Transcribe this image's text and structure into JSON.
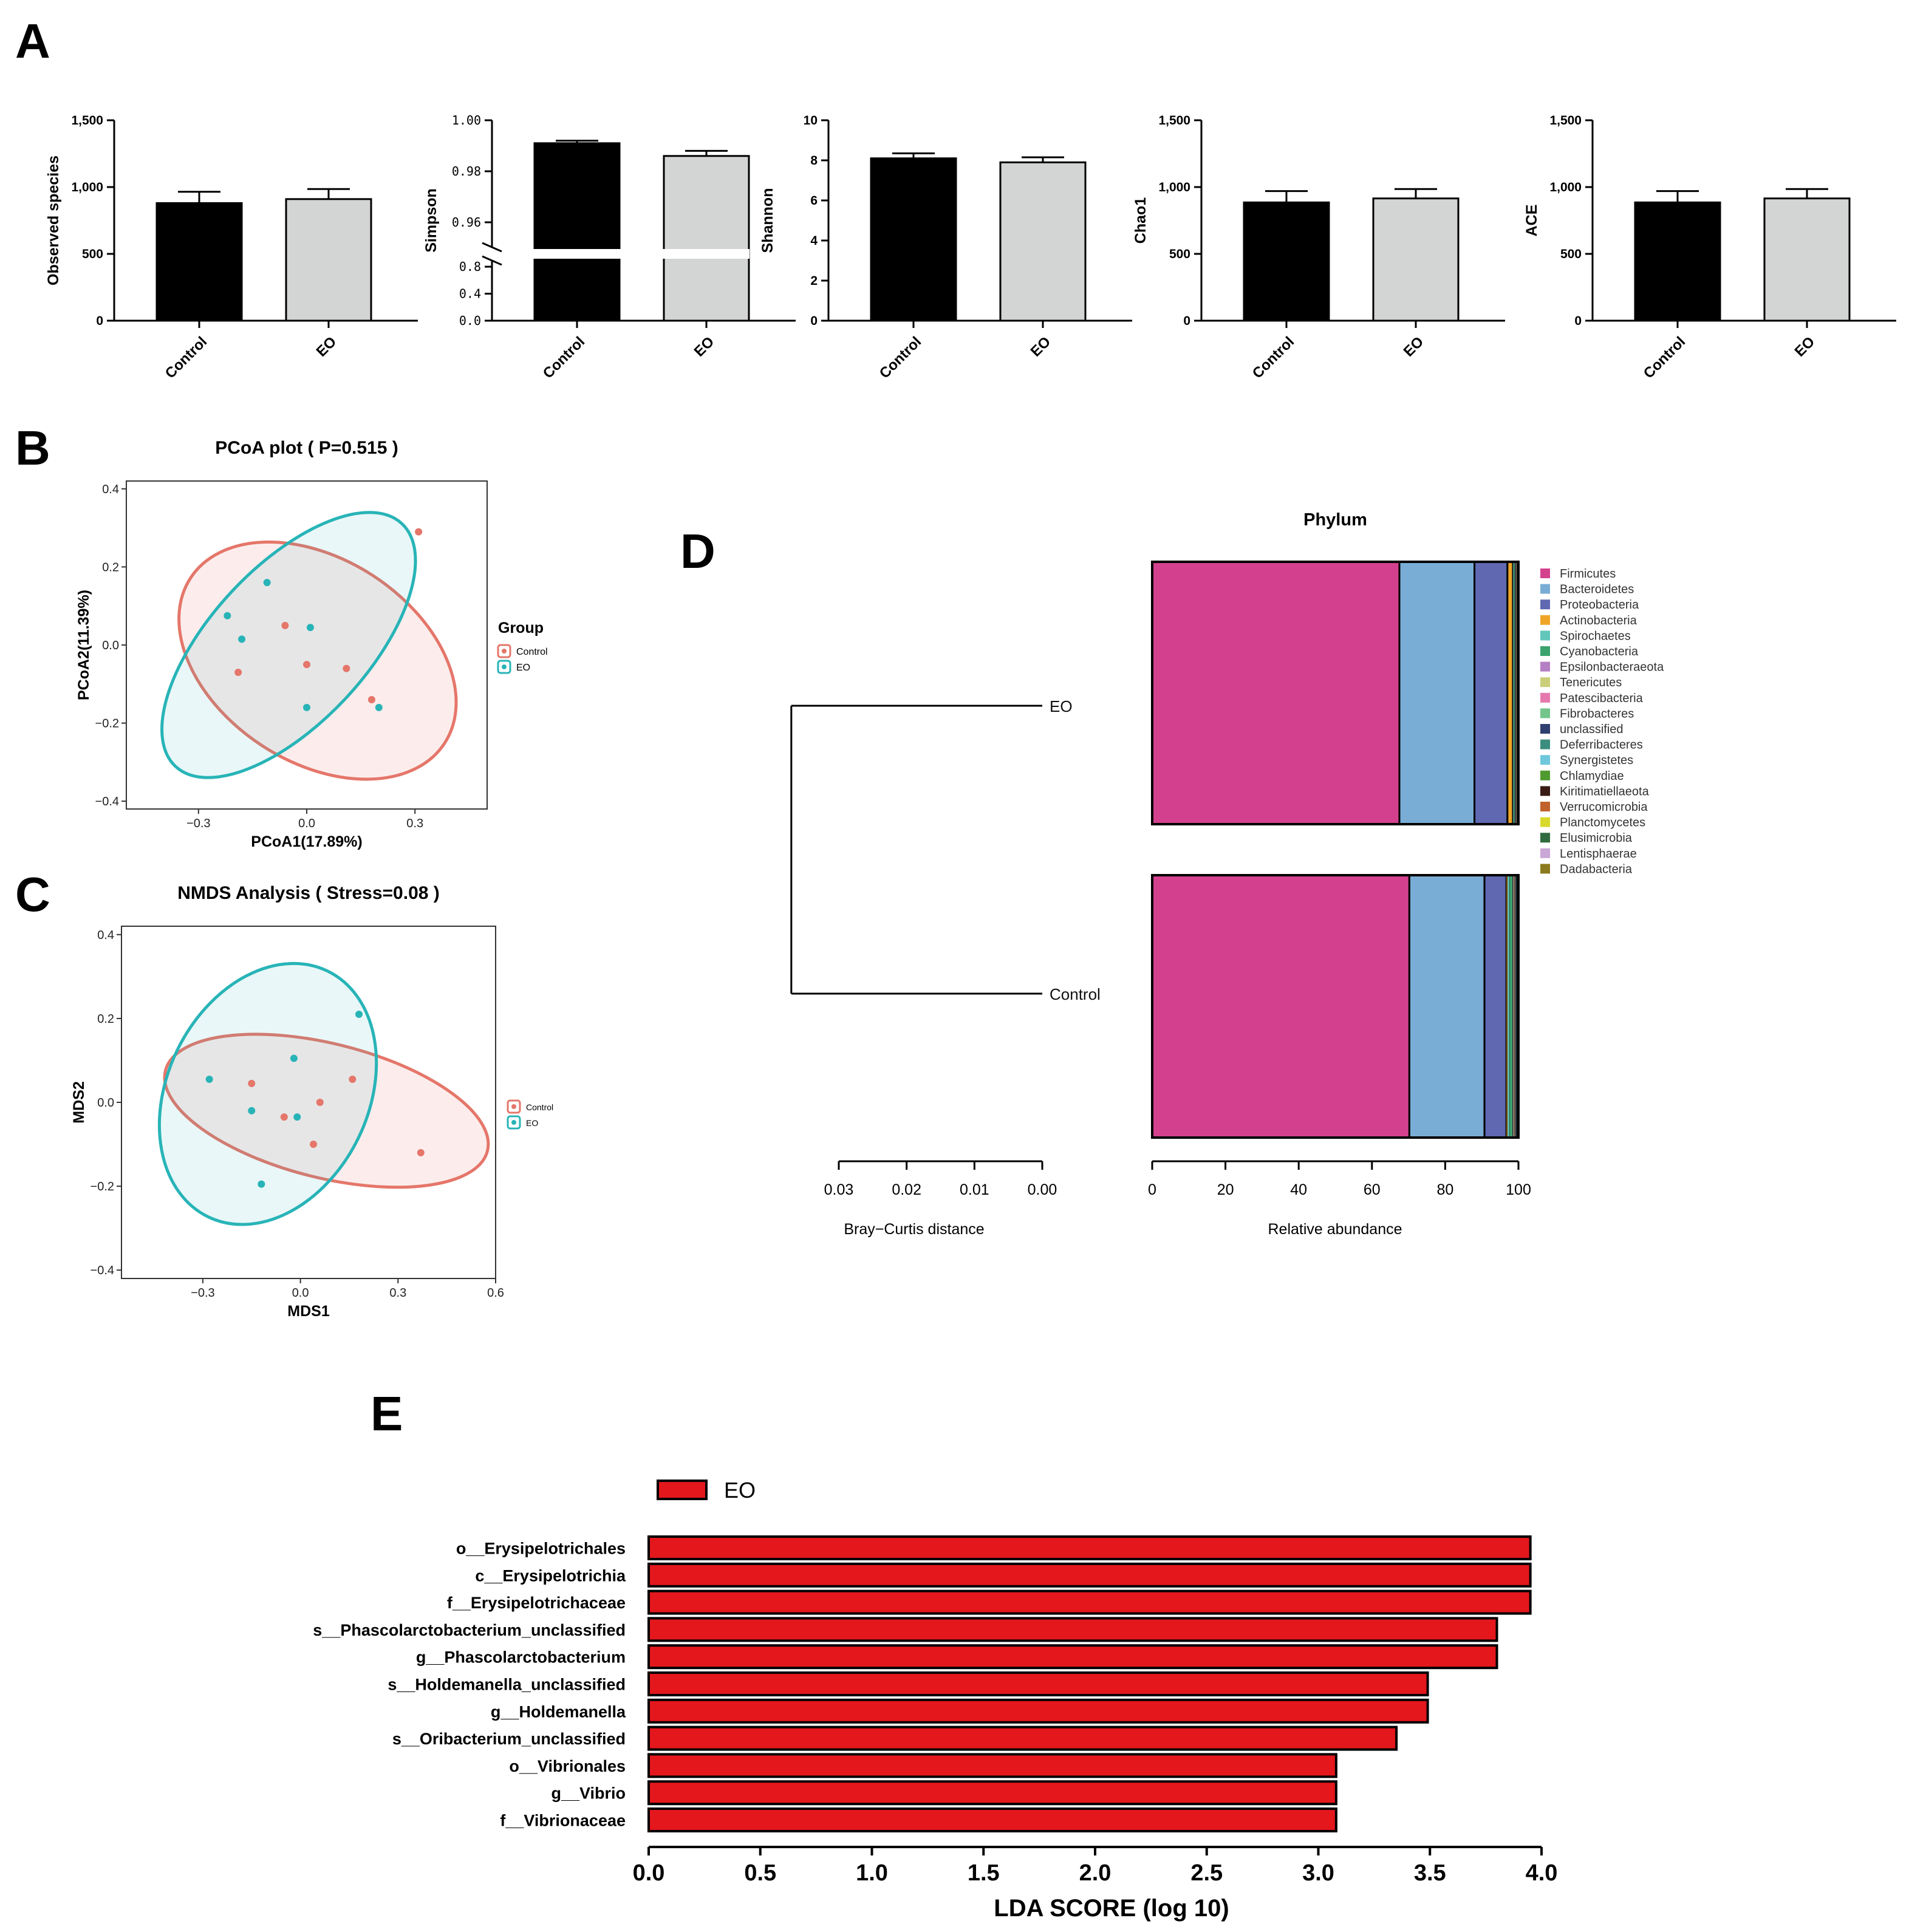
{
  "panel_labels": {
    "a": "A",
    "b": "B",
    "c": "C",
    "d": "D",
    "e": "E"
  },
  "colors": {
    "control_bar": "#000000",
    "eo_bar": "#d3d5d4",
    "control_group": "#e5766a",
    "eo_group": "#28b4b7",
    "lda_bar": "#e3171c"
  },
  "chart_data": [
    {
      "id": "observed",
      "type": "bar",
      "ylabel": "Observed species",
      "categories": [
        "Control",
        "EO"
      ],
      "values": [
        880,
        910
      ],
      "errors": [
        85,
        75
      ],
      "ylim": [
        0,
        1500
      ],
      "yticks": [
        "0",
        "500",
        "1,000",
        "1,500"
      ],
      "ytick_values": [
        0,
        500,
        1000,
        1500
      ]
    },
    {
      "id": "simpson",
      "type": "bar",
      "ylabel": "Simpson",
      "categories": [
        "Control",
        "EO"
      ],
      "values": [
        0.991,
        0.986
      ],
      "errors": [
        0.001,
        0.002
      ],
      "broken_axis": true,
      "lower_range": [
        0,
        0.9
      ],
      "upper_range": [
        0.95,
        1.0
      ],
      "lower_ticks": [
        "0.0",
        "0.4",
        "0.8"
      ],
      "lower_tick_values": [
        0,
        0.4,
        0.8
      ],
      "upper_ticks": [
        "0.96",
        "0.98",
        "1.00"
      ],
      "upper_tick_values": [
        0.96,
        0.98,
        1.0
      ]
    },
    {
      "id": "shannon",
      "type": "bar",
      "ylabel": "Shannon",
      "categories": [
        "Control",
        "EO"
      ],
      "values": [
        8.1,
        7.9
      ],
      "errors": [
        0.25,
        0.25
      ],
      "ylim": [
        0,
        10
      ],
      "yticks": [
        "0",
        "2",
        "4",
        "6",
        "8",
        "10"
      ],
      "ytick_values": [
        0,
        2,
        4,
        6,
        8,
        10
      ]
    },
    {
      "id": "chao1",
      "type": "bar",
      "ylabel": "Chao1",
      "categories": [
        "Control",
        "EO"
      ],
      "values": [
        885,
        915
      ],
      "errors": [
        85,
        70
      ],
      "ylim": [
        0,
        1500
      ],
      "yticks": [
        "0",
        "500",
        "1,000",
        "1,500"
      ],
      "ytick_values": [
        0,
        500,
        1000,
        1500
      ]
    },
    {
      "id": "ace",
      "type": "bar",
      "ylabel": "ACE",
      "categories": [
        "Control",
        "EO"
      ],
      "values": [
        885,
        915
      ],
      "errors": [
        85,
        70
      ],
      "ylim": [
        0,
        1500
      ],
      "yticks": [
        "0",
        "500",
        "1,000",
        "1,500"
      ],
      "ytick_values": [
        0,
        500,
        1000,
        1500
      ]
    },
    {
      "id": "pcoa",
      "type": "scatter",
      "title": "PCoA plot ( P=0.515 )",
      "xlabel": "PCoA1(17.89%)",
      "ylabel": "PCoA2(11.39%)",
      "xlim": [
        -0.5,
        0.5
      ],
      "ylim": [
        -0.42,
        0.42
      ],
      "xticks": [
        "−0.3",
        "0.0",
        "0.3"
      ],
      "xtick_values": [
        -0.3,
        0,
        0.3
      ],
      "yticks": [
        "−0.4",
        "−0.2",
        "0.0",
        "0.2",
        "0.4"
      ],
      "ytick_values": [
        -0.4,
        -0.2,
        0,
        0.2,
        0.4
      ],
      "legend_title": "Group",
      "series": [
        {
          "name": "Control",
          "points": [
            [
              0.31,
              0.29
            ],
            [
              -0.06,
              0.05
            ],
            [
              -0.19,
              -0.07
            ],
            [
              0.0,
              -0.05
            ],
            [
              0.11,
              -0.06
            ],
            [
              0.18,
              -0.14
            ]
          ],
          "ellipse": {
            "cx": 0.03,
            "cy": -0.04,
            "rx": 0.42,
            "ry": 0.26,
            "angle_deg": 33
          }
        },
        {
          "name": "EO",
          "points": [
            [
              -0.11,
              0.16
            ],
            [
              -0.22,
              0.075
            ],
            [
              -0.18,
              0.015
            ],
            [
              0.01,
              0.045
            ],
            [
              0.0,
              -0.16
            ],
            [
              0.2,
              -0.16
            ]
          ],
          "ellipse": {
            "cx": -0.05,
            "cy": 0.0,
            "rx": 0.46,
            "ry": 0.2,
            "angle_deg": -47
          }
        }
      ]
    },
    {
      "id": "nmds",
      "type": "scatter",
      "title": "NMDS Analysis ( Stress=0.08 )",
      "xlabel": "MDS1",
      "ylabel": "MDS2",
      "xlim": [
        -0.55,
        0.6
      ],
      "ylim": [
        -0.42,
        0.42
      ],
      "xticks": [
        "−0.3",
        "0.0",
        "0.3",
        "0.6"
      ],
      "xtick_values": [
        -0.3,
        0,
        0.3,
        0.6
      ],
      "yticks": [
        "−0.4",
        "−0.2",
        "0.0",
        "0.2",
        "0.4"
      ],
      "ytick_values": [
        -0.4,
        -0.2,
        0,
        0.2,
        0.4
      ],
      "series": [
        {
          "name": "Control",
          "points": [
            [
              -0.15,
              0.045
            ],
            [
              -0.05,
              -0.035
            ],
            [
              0.06,
              0.0
            ],
            [
              0.16,
              0.055
            ],
            [
              0.04,
              -0.1
            ],
            [
              0.37,
              -0.12
            ]
          ],
          "ellipse": {
            "cx": 0.08,
            "cy": -0.02,
            "rx": 0.51,
            "ry": 0.16,
            "angle_deg": 14
          }
        },
        {
          "name": "EO",
          "points": [
            [
              -0.28,
              0.055
            ],
            [
              -0.02,
              0.105
            ],
            [
              -0.15,
              -0.02
            ],
            [
              -0.01,
              -0.035
            ],
            [
              0.18,
              0.21
            ],
            [
              -0.12,
              -0.195
            ]
          ],
          "ellipse": {
            "cx": -0.1,
            "cy": 0.02,
            "rx": 0.42,
            "ry": 0.24,
            "angle_deg": -64
          }
        }
      ]
    },
    {
      "id": "phylum",
      "type": "bar",
      "orientation": "horizontal-stacked",
      "title": "Phylum",
      "xlabel": "Relative abundance",
      "xticks": [
        "0",
        "20",
        "40",
        "60",
        "80",
        "100"
      ],
      "xtick_values": [
        0,
        20,
        40,
        60,
        80,
        100
      ],
      "categories": [
        "EO",
        "Control"
      ],
      "series": [
        {
          "name": "Firmicutes",
          "color": "#d3418e",
          "values": [
            67.5,
            70.2
          ]
        },
        {
          "name": "Bacteroidetes",
          "color": "#7aadd5",
          "values": [
            20.5,
            20.5
          ]
        },
        {
          "name": "Proteobacteria",
          "color": "#5f68b0",
          "values": [
            9.0,
            6.0
          ]
        },
        {
          "name": "Actinobacteria",
          "color": "#efa628",
          "values": [
            1.5,
            0.3
          ]
        },
        {
          "name": "Spirochaetes",
          "color": "#62c6ba",
          "values": [
            0.3,
            0.6
          ]
        },
        {
          "name": "Cyanobacteria",
          "color": "#3ba36e",
          "values": [
            0.3,
            0.8
          ]
        },
        {
          "name": "Epsilonbacteraeota",
          "color": "#b57fc4",
          "values": [
            0.2,
            0.2
          ]
        },
        {
          "name": "Tenericutes",
          "color": "#cbcf7a",
          "values": [
            0.2,
            0.3
          ]
        },
        {
          "name": "Patescibacteria",
          "color": "#e579ad",
          "values": [
            0.1,
            0.2
          ]
        },
        {
          "name": "Fibrobacteres",
          "color": "#73c58a",
          "values": [
            0.1,
            0.2
          ]
        },
        {
          "name": "unclassified",
          "color": "#2f3f70",
          "values": [
            0.1,
            0.2
          ]
        },
        {
          "name": "Deferribacteres",
          "color": "#3b8d7e",
          "values": [
            0.05,
            0.1
          ]
        },
        {
          "name": "Synergistetes",
          "color": "#6ec7dd",
          "values": [
            0.05,
            0.1
          ]
        },
        {
          "name": "Chlamydiae",
          "color": "#4f9b2f",
          "values": [
            0.03,
            0.05
          ]
        },
        {
          "name": "Kiritimatiellaeota",
          "color": "#3a1a14",
          "values": [
            0.02,
            0.1
          ]
        },
        {
          "name": "Verrucomicrobia",
          "color": "#c0622b",
          "values": [
            0.02,
            0.05
          ]
        },
        {
          "name": "Planctomycetes",
          "color": "#d9d92c",
          "values": [
            0.01,
            0.03
          ]
        },
        {
          "name": "Elusimicrobia",
          "color": "#2f6b3d",
          "values": [
            0.01,
            0.02
          ]
        },
        {
          "name": "Lentisphaerae",
          "color": "#c9a7d6",
          "values": [
            0.01,
            0.02
          ]
        },
        {
          "name": "Dadabacteria",
          "color": "#8b7a1e",
          "values": [
            0.01,
            0.01
          ]
        }
      ]
    },
    {
      "id": "dendrogram",
      "type": "other",
      "xlabel": "Bray−Curtis distance",
      "xticks": [
        "0.03",
        "0.02",
        "0.01",
        "0.00"
      ],
      "xtick_values": [
        0.03,
        0.02,
        0.01,
        0.0
      ],
      "leaves": [
        "EO",
        "Control"
      ],
      "merge_height": 0.037
    },
    {
      "id": "lefse",
      "type": "bar",
      "orientation": "horizontal",
      "xlabel": "LDA SCORE (log 10)",
      "legend": "EO",
      "xlim": [
        0,
        4.0
      ],
      "xticks": [
        "0.0",
        "0.5",
        "1.0",
        "1.5",
        "2.0",
        "2.5",
        "3.0",
        "3.5",
        "4.0"
      ],
      "xtick_values": [
        0,
        0.5,
        1.0,
        1.5,
        2.0,
        2.5,
        3.0,
        3.5,
        4.0
      ],
      "categories": [
        "o__Erysipelotrichales",
        "c__Erysipelotrichia",
        "f__Erysipelotrichaceae",
        "s__Phascolarctobacterium_unclassified",
        "g__Phascolarctobacterium",
        "s__Holdemanella_unclassified",
        "g__Holdemanella",
        "s__Oribacterium_unclassified",
        "o__Vibrionales",
        "g__Vibrio",
        "f__Vibrionaceae"
      ],
      "values": [
        3.95,
        3.95,
        3.95,
        3.8,
        3.8,
        3.49,
        3.49,
        3.35,
        3.08,
        3.08,
        3.08
      ]
    }
  ]
}
